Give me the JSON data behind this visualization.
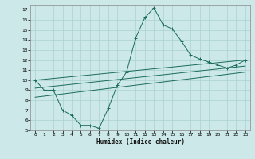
{
  "title": "",
  "xlabel": "Humidex (Indice chaleur)",
  "bg_color": "#cce8e8",
  "grid_color": "#aad0d0",
  "line_color": "#1a6b5a",
  "xlim": [
    -0.5,
    23.5
  ],
  "ylim": [
    5,
    17.5
  ],
  "xticks": [
    0,
    1,
    2,
    3,
    4,
    5,
    6,
    7,
    8,
    9,
    10,
    11,
    12,
    13,
    14,
    15,
    16,
    17,
    18,
    19,
    20,
    21,
    22,
    23
  ],
  "yticks": [
    5,
    6,
    7,
    8,
    9,
    10,
    11,
    12,
    13,
    14,
    15,
    16,
    17
  ],
  "main_line_x": [
    0,
    1,
    2,
    3,
    4,
    5,
    6,
    7,
    8,
    9,
    10,
    11,
    12,
    13,
    14,
    15,
    16,
    17,
    18,
    19,
    20,
    21,
    22,
    23
  ],
  "main_line_y": [
    10,
    9,
    9,
    7,
    6.5,
    5.5,
    5.5,
    5.2,
    7.2,
    9.5,
    10.8,
    14.2,
    16.2,
    17.2,
    15.5,
    15.1,
    13.9,
    12.5,
    12.1,
    11.8,
    11.5,
    11.2,
    11.5,
    12.0
  ],
  "line2_x": [
    0,
    23
  ],
  "line2_y": [
    10.0,
    12.0
  ],
  "line3_x": [
    0,
    23
  ],
  "line3_y": [
    9.2,
    11.4
  ],
  "line4_x": [
    0,
    23
  ],
  "line4_y": [
    8.3,
    10.8
  ]
}
